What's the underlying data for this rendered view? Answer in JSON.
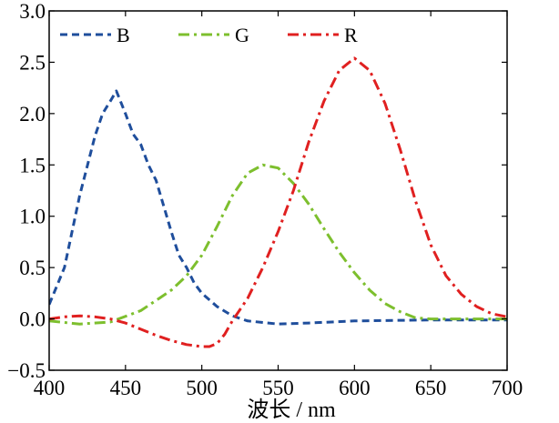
{
  "chart_data": {
    "type": "line",
    "title": "",
    "xlabel": "波长 / nm",
    "ylabel": "",
    "xlim": [
      400,
      700
    ],
    "ylim": [
      -0.5,
      3.0
    ],
    "xticks": [
      400,
      450,
      500,
      550,
      600,
      650,
      700
    ],
    "yticks": [
      -0.5,
      0.0,
      0.5,
      1.0,
      1.5,
      2.0,
      2.5,
      3.0
    ],
    "xtick_labels": [
      "400",
      "450",
      "500",
      "550",
      "600",
      "650",
      "700"
    ],
    "ytick_labels": [
      "−0.5",
      "0.0",
      "0.5",
      "1.0",
      "1.5",
      "2.0",
      "2.5",
      "3.0"
    ],
    "grid": false,
    "legend": {
      "position": "top",
      "columns": 3
    },
    "series": [
      {
        "name": "B",
        "color": "#1f4e9c",
        "dash": "dashed",
        "points": [
          [
            400,
            0.14
          ],
          [
            410,
            0.5
          ],
          [
            420,
            1.2
          ],
          [
            430,
            1.78
          ],
          [
            435,
            2.0
          ],
          [
            440,
            2.12
          ],
          [
            444,
            2.22
          ],
          [
            450,
            2.0
          ],
          [
            455,
            1.8
          ],
          [
            460,
            1.7
          ],
          [
            465,
            1.5
          ],
          [
            470,
            1.35
          ],
          [
            475,
            1.1
          ],
          [
            480,
            0.85
          ],
          [
            485,
            0.62
          ],
          [
            490,
            0.5
          ],
          [
            495,
            0.35
          ],
          [
            500,
            0.25
          ],
          [
            510,
            0.12
          ],
          [
            520,
            0.03
          ],
          [
            530,
            -0.02
          ],
          [
            550,
            -0.05
          ],
          [
            570,
            -0.04
          ],
          [
            600,
            -0.02
          ],
          [
            650,
            -0.01
          ],
          [
            700,
            -0.01
          ]
        ]
      },
      {
        "name": "G",
        "color": "#7dbf2e",
        "dash": "dashdot",
        "points": [
          [
            400,
            -0.02
          ],
          [
            420,
            -0.05
          ],
          [
            440,
            -0.03
          ],
          [
            460,
            0.08
          ],
          [
            470,
            0.18
          ],
          [
            480,
            0.28
          ],
          [
            490,
            0.42
          ],
          [
            500,
            0.62
          ],
          [
            510,
            0.9
          ],
          [
            520,
            1.2
          ],
          [
            530,
            1.42
          ],
          [
            540,
            1.5
          ],
          [
            550,
            1.47
          ],
          [
            560,
            1.32
          ],
          [
            570,
            1.12
          ],
          [
            580,
            0.88
          ],
          [
            590,
            0.65
          ],
          [
            600,
            0.45
          ],
          [
            610,
            0.28
          ],
          [
            620,
            0.15
          ],
          [
            630,
            0.07
          ],
          [
            640,
            0.01
          ],
          [
            650,
            0.0
          ],
          [
            700,
            0.0
          ]
        ]
      },
      {
        "name": "R",
        "color": "#e02020",
        "dash": "dashdot",
        "points": [
          [
            400,
            0.0
          ],
          [
            410,
            0.02
          ],
          [
            420,
            0.03
          ],
          [
            430,
            0.02
          ],
          [
            440,
            0.0
          ],
          [
            450,
            -0.04
          ],
          [
            460,
            -0.1
          ],
          [
            470,
            -0.16
          ],
          [
            480,
            -0.21
          ],
          [
            490,
            -0.25
          ],
          [
            500,
            -0.27
          ],
          [
            505,
            -0.27
          ],
          [
            510,
            -0.24
          ],
          [
            515,
            -0.15
          ],
          [
            520,
            -0.02
          ],
          [
            530,
            0.2
          ],
          [
            540,
            0.5
          ],
          [
            550,
            0.85
          ],
          [
            560,
            1.25
          ],
          [
            570,
            1.72
          ],
          [
            580,
            2.12
          ],
          [
            590,
            2.42
          ],
          [
            600,
            2.54
          ],
          [
            610,
            2.42
          ],
          [
            620,
            2.1
          ],
          [
            630,
            1.65
          ],
          [
            640,
            1.15
          ],
          [
            650,
            0.72
          ],
          [
            660,
            0.42
          ],
          [
            670,
            0.24
          ],
          [
            680,
            0.12
          ],
          [
            690,
            0.05
          ],
          [
            700,
            0.02
          ]
        ]
      }
    ]
  }
}
